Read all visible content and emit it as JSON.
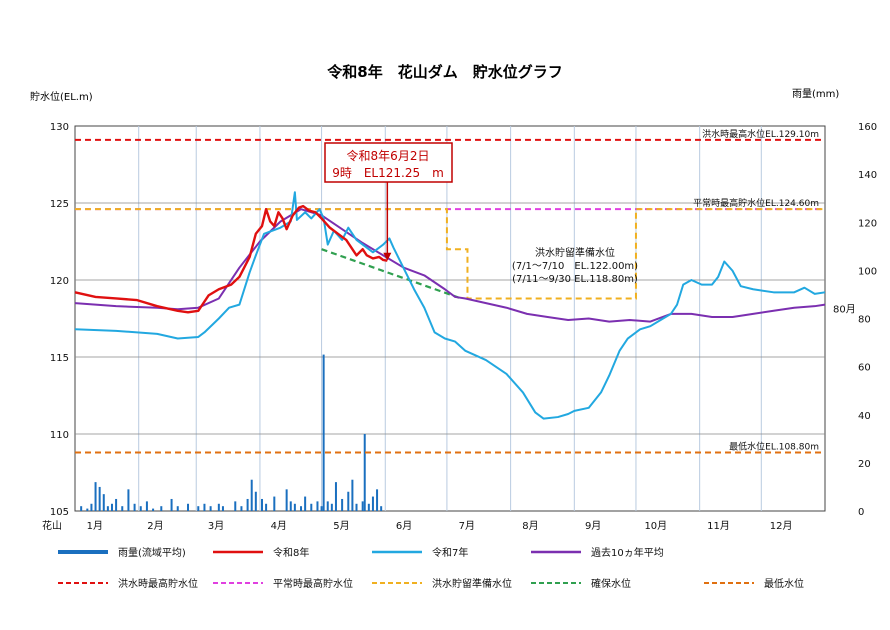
{
  "chart_data": {
    "type": "line",
    "title": "令和8年　花山ダム　貯水位グラフ",
    "y_left_label": "貯水位(EL.m)",
    "y_right_label": "雨量(mm)",
    "y_left_ticks": [
      "130",
      "125",
      "120",
      "115",
      "110",
      "105"
    ],
    "y_left_range": [
      105,
      130
    ],
    "y_right_ticks": [
      "160",
      "140",
      "120",
      "100",
      "80",
      "60",
      "40",
      "20",
      "0"
    ],
    "y_right_range": [
      0,
      160
    ],
    "x_tick_labels": [
      "1月",
      "2月",
      "3月",
      "4月",
      "5月",
      "6月",
      "7月",
      "8月",
      "9月",
      "10月",
      "11月",
      "12月"
    ],
    "x_prefix_label": "花山",
    "x_range_days": [
      0,
      365
    ],
    "right_axis_extra_label": "80月",
    "reference_lines": [
      {
        "name": "洪水時最高水位EL.129.10m",
        "value": 129.1,
        "color": "#e01010"
      },
      {
        "name": "平常時最高貯水位EL.124.60m",
        "value": 124.6,
        "color": "#e040e0"
      },
      {
        "name": "最低水位EL.108.80m",
        "value": 108.8,
        "color": "#e07010"
      }
    ],
    "flood_prep_label_lines": [
      "洪水貯留準備水位",
      "(7/1～7/10　EL.122.00m)",
      "(7/11～9/30 EL.118.80m)"
    ],
    "flood_prep_line": [
      [
        0,
        124.6
      ],
      [
        181,
        124.6
      ],
      [
        181,
        122.0
      ],
      [
        191,
        122.0
      ],
      [
        191,
        118.8
      ],
      [
        273,
        118.8
      ],
      [
        273,
        124.6
      ],
      [
        365,
        124.6
      ]
    ],
    "security_line": [
      [
        120,
        122.0
      ],
      [
        188,
        118.8
      ]
    ],
    "annotation": {
      "line1": "令和8年6月2日",
      "line2": "9時　EL121.25　m",
      "x": 152,
      "y": 121.25
    },
    "series": [
      {
        "name": "令和8年",
        "color": "#e01010",
        "points": [
          [
            0,
            119.2
          ],
          [
            10,
            118.9
          ],
          [
            20,
            118.8
          ],
          [
            30,
            118.7
          ],
          [
            40,
            118.3
          ],
          [
            50,
            118.0
          ],
          [
            55,
            117.9
          ],
          [
            60,
            118.0
          ],
          [
            62,
            118.4
          ],
          [
            65,
            119.0
          ],
          [
            70,
            119.4
          ],
          [
            76,
            119.7
          ],
          [
            80,
            120.2
          ],
          [
            85,
            121.5
          ],
          [
            88,
            123.0
          ],
          [
            91,
            123.5
          ],
          [
            93,
            124.6
          ],
          [
            95,
            123.8
          ],
          [
            97,
            123.5
          ],
          [
            99,
            124.4
          ],
          [
            101,
            124.0
          ],
          [
            103,
            123.3
          ],
          [
            106,
            124.2
          ],
          [
            109,
            124.7
          ],
          [
            111,
            124.8
          ],
          [
            114,
            124.5
          ],
          [
            117,
            124.4
          ],
          [
            120,
            124.0
          ],
          [
            124,
            123.4
          ],
          [
            128,
            123.0
          ],
          [
            132,
            122.6
          ],
          [
            135,
            122.0
          ],
          [
            137,
            121.6
          ],
          [
            140,
            122.0
          ],
          [
            142,
            121.6
          ],
          [
            145,
            121.4
          ],
          [
            148,
            121.5
          ],
          [
            150,
            121.3
          ],
          [
            152,
            121.25
          ]
        ]
      },
      {
        "name": "令和7年",
        "color": "#22a8e0",
        "points": [
          [
            0,
            116.8
          ],
          [
            20,
            116.7
          ],
          [
            40,
            116.5
          ],
          [
            50,
            116.2
          ],
          [
            60,
            116.3
          ],
          [
            63,
            116.6
          ],
          [
            70,
            117.5
          ],
          [
            75,
            118.2
          ],
          [
            80,
            118.4
          ],
          [
            85,
            120.5
          ],
          [
            88,
            121.6
          ],
          [
            92,
            123.0
          ],
          [
            100,
            123.4
          ],
          [
            105,
            123.8
          ],
          [
            107,
            125.7
          ],
          [
            108,
            123.9
          ],
          [
            112,
            124.4
          ],
          [
            115,
            124.0
          ],
          [
            119,
            124.6
          ],
          [
            121,
            124.0
          ],
          [
            123,
            122.3
          ],
          [
            126,
            123.2
          ],
          [
            130,
            122.6
          ],
          [
            133,
            123.4
          ],
          [
            137,
            122.6
          ],
          [
            140,
            122.3
          ],
          [
            145,
            121.8
          ],
          [
            150,
            122.3
          ],
          [
            153,
            122.7
          ],
          [
            155,
            122.1
          ],
          [
            165,
            119.4
          ],
          [
            170,
            118.2
          ],
          [
            175,
            116.6
          ],
          [
            180,
            116.2
          ],
          [
            185,
            116.0
          ],
          [
            190,
            115.4
          ],
          [
            200,
            114.8
          ],
          [
            210,
            113.9
          ],
          [
            218,
            112.7
          ],
          [
            224,
            111.4
          ],
          [
            228,
            111.0
          ],
          [
            235,
            111.1
          ],
          [
            240,
            111.3
          ],
          [
            243,
            111.5
          ],
          [
            250,
            111.7
          ],
          [
            256,
            112.7
          ],
          [
            260,
            113.8
          ],
          [
            265,
            115.4
          ],
          [
            269,
            116.2
          ],
          [
            275,
            116.8
          ],
          [
            280,
            117.0
          ],
          [
            285,
            117.4
          ],
          [
            290,
            117.8
          ],
          [
            293,
            118.4
          ],
          [
            296,
            119.7
          ],
          [
            300,
            120.0
          ],
          [
            305,
            119.7
          ],
          [
            310,
            119.7
          ],
          [
            313,
            120.2
          ],
          [
            316,
            121.2
          ],
          [
            320,
            120.6
          ],
          [
            324,
            119.6
          ],
          [
            330,
            119.4
          ],
          [
            340,
            119.2
          ],
          [
            350,
            119.2
          ],
          [
            355,
            119.5
          ],
          [
            360,
            119.1
          ],
          [
            365,
            119.2
          ]
        ]
      },
      {
        "name": "過去10ヵ年平均",
        "color": "#7b2fb0",
        "points": [
          [
            0,
            118.5
          ],
          [
            20,
            118.3
          ],
          [
            40,
            118.2
          ],
          [
            50,
            118.1
          ],
          [
            60,
            118.2
          ],
          [
            70,
            118.8
          ],
          [
            75,
            119.8
          ],
          [
            80,
            120.8
          ],
          [
            90,
            122.5
          ],
          [
            100,
            123.8
          ],
          [
            110,
            124.6
          ],
          [
            120,
            124.2
          ],
          [
            130,
            123.3
          ],
          [
            140,
            122.4
          ],
          [
            150,
            121.6
          ],
          [
            160,
            120.8
          ],
          [
            170,
            120.3
          ],
          [
            180,
            119.4
          ],
          [
            185,
            118.9
          ],
          [
            190,
            118.8
          ],
          [
            200,
            118.5
          ],
          [
            210,
            118.2
          ],
          [
            220,
            117.8
          ],
          [
            230,
            117.6
          ],
          [
            240,
            117.4
          ],
          [
            250,
            117.5
          ],
          [
            260,
            117.3
          ],
          [
            270,
            117.4
          ],
          [
            280,
            117.3
          ],
          [
            290,
            117.8
          ],
          [
            300,
            117.8
          ],
          [
            310,
            117.6
          ],
          [
            320,
            117.6
          ],
          [
            330,
            117.8
          ],
          [
            340,
            118.0
          ],
          [
            350,
            118.2
          ],
          [
            360,
            118.3
          ],
          [
            365,
            118.4
          ]
        ]
      }
    ],
    "rainfall": {
      "name": "雨量(流域平均)",
      "color": "#1a6fbf",
      "bars": [
        [
          3,
          2
        ],
        [
          6,
          1
        ],
        [
          8,
          3
        ],
        [
          10,
          12
        ],
        [
          12,
          10
        ],
        [
          14,
          7
        ],
        [
          16,
          2
        ],
        [
          18,
          3
        ],
        [
          20,
          5
        ],
        [
          23,
          2
        ],
        [
          26,
          9
        ],
        [
          29,
          3
        ],
        [
          32,
          2
        ],
        [
          35,
          4
        ],
        [
          38,
          1
        ],
        [
          42,
          2
        ],
        [
          47,
          5
        ],
        [
          50,
          2
        ],
        [
          55,
          3
        ],
        [
          60,
          2
        ],
        [
          63,
          3
        ],
        [
          66,
          2
        ],
        [
          70,
          3
        ],
        [
          72,
          2
        ],
        [
          78,
          4
        ],
        [
          81,
          2
        ],
        [
          84,
          5
        ],
        [
          86,
          13
        ],
        [
          88,
          8
        ],
        [
          91,
          5
        ],
        [
          93,
          3
        ],
        [
          97,
          6
        ],
        [
          103,
          9
        ],
        [
          105,
          4
        ],
        [
          107,
          3
        ],
        [
          110,
          2
        ],
        [
          112,
          6
        ],
        [
          115,
          3
        ],
        [
          118,
          4
        ],
        [
          120,
          2
        ],
        [
          121,
          65
        ],
        [
          123,
          4
        ],
        [
          125,
          3
        ],
        [
          127,
          12
        ],
        [
          130,
          5
        ],
        [
          133,
          8
        ],
        [
          135,
          13
        ],
        [
          137,
          3
        ],
        [
          140,
          4
        ],
        [
          141,
          32
        ],
        [
          143,
          3
        ],
        [
          145,
          6
        ],
        [
          147,
          9
        ],
        [
          149,
          2
        ]
      ]
    },
    "legend": [
      {
        "label": "雨量(流域平均)",
        "color": "#1a6fbf",
        "style": "bar"
      },
      {
        "label": "令和8年",
        "color": "#e01010",
        "style": "solid"
      },
      {
        "label": "令和7年",
        "color": "#22a8e0",
        "style": "solid"
      },
      {
        "label": "過去10ヵ年平均",
        "color": "#7b2fb0",
        "style": "solid"
      },
      {
        "label": "洪水時最高貯水位",
        "color": "#e01010",
        "style": "dash"
      },
      {
        "label": "平常時最高貯水位",
        "color": "#e040e0",
        "style": "dash"
      },
      {
        "label": "洪水貯留準備水位",
        "color": "#f0b020",
        "style": "dash"
      },
      {
        "label": "確保水位",
        "color": "#30a050",
        "style": "dash"
      },
      {
        "label": "最低水位",
        "color": "#e07010",
        "style": "dash"
      }
    ]
  }
}
